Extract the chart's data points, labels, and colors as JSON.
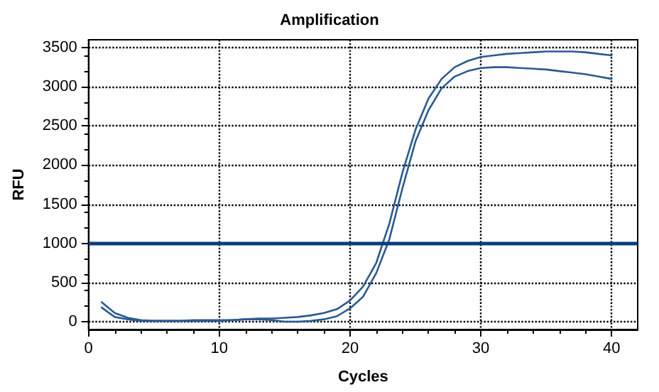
{
  "chart_data": {
    "type": "line",
    "title": "Amplification",
    "xlabel": "Cycles",
    "ylabel": "RFU",
    "x": [
      1,
      2,
      3,
      4,
      5,
      6,
      7,
      8,
      9,
      10,
      11,
      12,
      13,
      14,
      15,
      16,
      17,
      18,
      19,
      20,
      21,
      22,
      23,
      24,
      25,
      26,
      27,
      28,
      29,
      30,
      31,
      32,
      33,
      34,
      35,
      36,
      37,
      38,
      39,
      40
    ],
    "series": [
      {
        "color": "#2b5a94",
        "values": [
          250,
          110,
          50,
          20,
          10,
          10,
          10,
          10,
          10,
          10,
          20,
          30,
          40,
          40,
          50,
          60,
          80,
          110,
          160,
          270,
          450,
          750,
          1250,
          1900,
          2450,
          2850,
          3100,
          3250,
          3330,
          3380,
          3400,
          3420,
          3430,
          3440,
          3450,
          3450,
          3450,
          3440,
          3420,
          3400
        ]
      },
      {
        "color": "#2b5a94",
        "values": [
          180,
          60,
          30,
          10,
          10,
          10,
          10,
          20,
          20,
          20,
          20,
          30,
          30,
          20,
          0,
          0,
          10,
          30,
          70,
          170,
          320,
          620,
          1050,
          1700,
          2300,
          2700,
          2980,
          3130,
          3200,
          3240,
          3250,
          3250,
          3240,
          3230,
          3220,
          3200,
          3180,
          3160,
          3130,
          3100
        ]
      }
    ],
    "ref_lines": [
      {
        "axis": "y",
        "value": 1000,
        "color": "#0a3e78"
      }
    ],
    "xlim": [
      0,
      42
    ],
    "xticks": [
      0,
      10,
      20,
      30,
      40
    ],
    "ylim": [
      -100,
      3600
    ],
    "yticks": [
      0,
      500,
      1000,
      1500,
      2000,
      2500,
      3000,
      3500
    ],
    "grid": true,
    "marker": "none",
    "line_style": "solid"
  }
}
